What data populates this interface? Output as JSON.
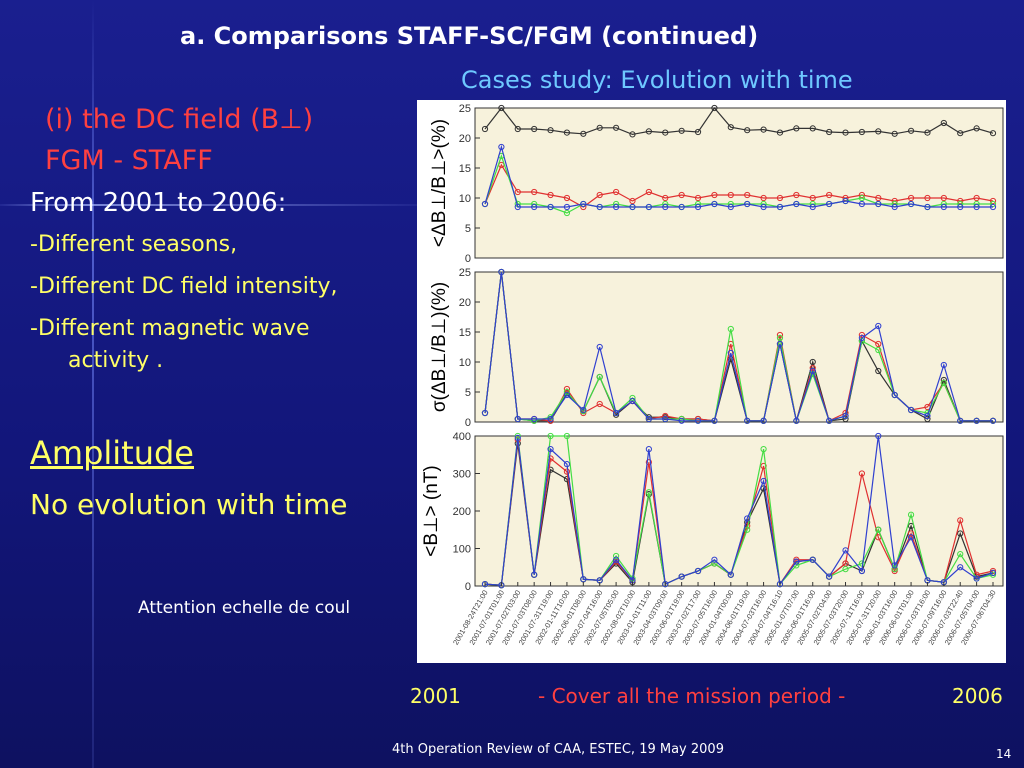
{
  "slide": {
    "title": "a. Comparisons STAFF-SC/FGM (continued)",
    "subtitle": "Cases study: Evolution with time",
    "heading_line1": "(i) the DC field (B⊥)",
    "heading_line2": "FGM - STAFF",
    "from": "From 2001 to 2006:",
    "bullets": [
      "-Different seasons,",
      "-Different DC field intensity,",
      "-Different magnetic wave",
      "activity ."
    ],
    "amplitude": "Amplitude",
    "no_evolution": "No evolution with time",
    "attention": "Attention echelle de coul",
    "year_start": "2001",
    "cover": "- Cover all the mission period -",
    "year_end": "2006",
    "footer": "4th Operation Review of CAA, ESTEC, 19 May 2009",
    "page_number": "14"
  },
  "colors": {
    "black_series": "#333333",
    "red_series": "#e03030",
    "green_series": "#44dd44",
    "blue_series": "#3040d0",
    "plot_bg": "#f7f2dc"
  },
  "chart_data": [
    {
      "type": "line",
      "ylabel": "<ΔB⊥/B⊥>(%)",
      "ylim": [
        0,
        25
      ],
      "yticks": [
        0,
        5,
        10,
        15,
        20,
        25
      ],
      "series": [
        {
          "values": [
            21.5,
            25,
            21.5,
            21.5,
            21.3,
            20.9,
            20.7,
            21.7,
            21.7,
            20.6,
            21.1,
            20.9,
            21.2,
            21.0,
            25,
            21.8,
            21.3,
            21.4,
            20.9,
            21.6,
            21.6,
            21.0,
            20.9,
            21.0,
            21.1,
            20.7,
            21.2,
            20.9,
            22.5,
            20.8,
            21.6,
            20.8
          ]
        },
        {
          "values": [
            9,
            15.5,
            11,
            11,
            10.5,
            10,
            8.5,
            10.5,
            11,
            9.5,
            11,
            10,
            10.5,
            10,
            10.5,
            10.5,
            10.5,
            10,
            10,
            10.5,
            10,
            10.5,
            10,
            10.5,
            10,
            9.5,
            10,
            10,
            10,
            9.5,
            10,
            9.5
          ]
        },
        {
          "values": [
            9,
            17,
            9,
            9,
            8.5,
            7.5,
            9,
            8.5,
            9,
            8.5,
            8.5,
            9,
            8.5,
            9,
            9,
            9,
            9,
            9,
            8.5,
            9,
            9,
            9,
            9.5,
            10,
            9,
            9,
            9,
            8.5,
            9,
            9,
            9,
            9
          ]
        },
        {
          "values": [
            9,
            18.5,
            8.5,
            8.5,
            8.5,
            8.5,
            9,
            8.5,
            8.5,
            8.5,
            8.5,
            8.5,
            8.5,
            8.5,
            9,
            8.5,
            9,
            8.5,
            8.5,
            9,
            8.5,
            9,
            9.5,
            9,
            9,
            8.5,
            9,
            8.5,
            8.5,
            8.5,
            8.5,
            8.5
          ]
        }
      ]
    },
    {
      "type": "line",
      "ylabel": "σ(ΔB⊥/B⊥)(%)",
      "ylim": [
        0,
        25
      ],
      "yticks": [
        0,
        5,
        10,
        15,
        20,
        25
      ],
      "series": [
        {
          "values": [
            1.5,
            25,
            0.5,
            0.2,
            0.2,
            4.8,
            1.8,
            7.5,
            1.2,
            3.5,
            0.8,
            0.8,
            0.5,
            0.5,
            0.2,
            10.5,
            0.2,
            0.2,
            13,
            0.2,
            10,
            0.2,
            0.5,
            13.5,
            8.5,
            4.5,
            2,
            0.5,
            7,
            0.2,
            0.2,
            0.2
          ]
        },
        {
          "values": [
            1.5,
            25,
            0.5,
            0.5,
            0.2,
            5.5,
            1.5,
            3,
            1.5,
            3.5,
            0.5,
            1,
            0.5,
            0.5,
            0.2,
            13,
            0.2,
            0.2,
            14.5,
            0.2,
            9,
            0.2,
            1.5,
            14.5,
            13,
            4.5,
            2,
            2.5,
            6.5,
            0.2,
            0.2,
            0.2
          ]
        },
        {
          "values": [
            1.5,
            25,
            0.5,
            0.2,
            0.8,
            5,
            1.8,
            7.5,
            1.5,
            4,
            0.5,
            0.5,
            0.5,
            0.2,
            0.2,
            15.5,
            0.2,
            0.2,
            14,
            0.2,
            8,
            0.2,
            1,
            13.5,
            12,
            4.5,
            2,
            1.5,
            6.5,
            0.2,
            0.2,
            0.2
          ]
        },
        {
          "values": [
            1.5,
            25,
            0.5,
            0.5,
            0.5,
            4.5,
            2,
            12.5,
            1.5,
            3.5,
            0.5,
            0.5,
            0.2,
            0.2,
            0.2,
            11.5,
            0.2,
            0.2,
            13,
            0.2,
            8.5,
            0.2,
            1,
            14,
            16,
            4.5,
            2,
            1,
            9.5,
            0.2,
            0.2,
            0.2
          ]
        }
      ]
    },
    {
      "type": "line",
      "ylabel": "<B⊥> (nT)",
      "ylim": [
        0,
        400
      ],
      "yticks": [
        0,
        100,
        200,
        300,
        400
      ],
      "series": [
        {
          "values": [
            5,
            2,
            380,
            30,
            310,
            285,
            18,
            15,
            60,
            10,
            245,
            5,
            25,
            40,
            60,
            30,
            170,
            260,
            5,
            65,
            70,
            25,
            60,
            40,
            150,
            45,
            160,
            15,
            10,
            140,
            25,
            35
          ]
        },
        {
          "values": [
            5,
            2,
            390,
            30,
            340,
            305,
            18,
            15,
            65,
            15,
            330,
            5,
            25,
            40,
            60,
            30,
            160,
            320,
            5,
            70,
            70,
            25,
            60,
            300,
            130,
            40,
            140,
            15,
            10,
            175,
            30,
            40
          ]
        },
        {
          "values": [
            5,
            2,
            400,
            30,
            400,
            400,
            18,
            15,
            80,
            20,
            250,
            5,
            25,
            40,
            60,
            30,
            150,
            365,
            5,
            55,
            70,
            25,
            45,
            60,
            150,
            45,
            190,
            15,
            10,
            85,
            20,
            30
          ]
        },
        {
          "values": [
            5,
            2,
            395,
            30,
            365,
            325,
            18,
            15,
            70,
            15,
            365,
            5,
            25,
            40,
            70,
            30,
            180,
            280,
            5,
            65,
            70,
            25,
            95,
            40,
            400,
            55,
            130,
            15,
            10,
            50,
            20,
            35
          ]
        }
      ]
    }
  ],
  "x_tick_labels": [
    "2001-08-24T21:00",
    "2001-07-01T01:00",
    "2001-07-02T03:00",
    "2001-07-03T08:00",
    "2001-07-31T19:00",
    "2002-01-11T10:00",
    "2002-06-01T08:00",
    "2002-07-04T16:00",
    "2002-07-05T05:00",
    "2002-08-02T10:00",
    "2003-01-01T11:00",
    "2003-04-03T09:00",
    "2003-06-01T19:00",
    "2003-07-02T17:00",
    "2003-07-05T16:00",
    "2004-01-04T00:00",
    "2004-06-01T19:00",
    "2004-07-03T16:00",
    "2004-07-04T16:10",
    "2005-01-07T07:00",
    "2005-06-01T16:00",
    "2005-07-02T04:00",
    "2005-07-03T20:00",
    "2005-07-11T16:00",
    "2005-07-31T20:00",
    "2006-01-03T16:00",
    "2006-06-01T01:00",
    "2006-07-03T16:00",
    "2006-07-09T16:00",
    "2006-07-03T22:40",
    "2006-07-05T04:00",
    "2006-07-06T04:30"
  ]
}
